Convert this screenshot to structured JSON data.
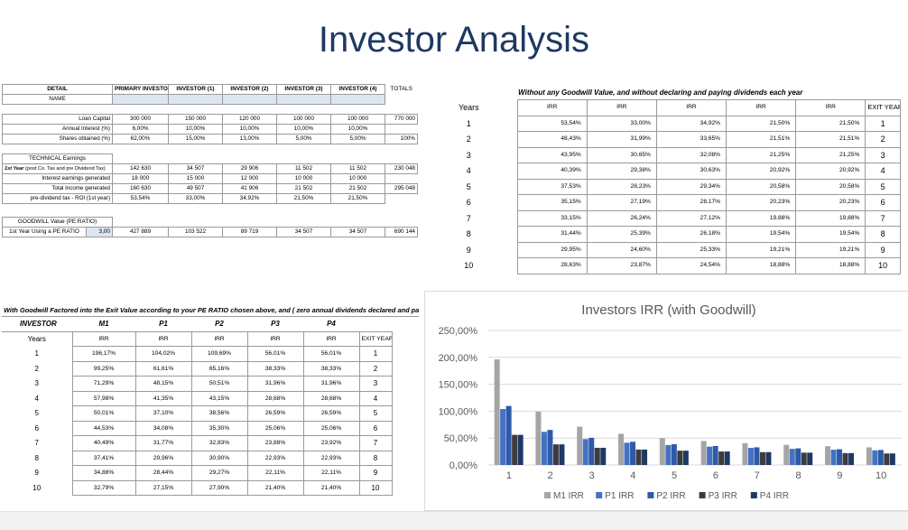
{
  "title": "Investor Analysis",
  "detail": {
    "headers": [
      "DETAIL",
      "PRIMARY INVESTOR",
      "INVESTOR (1)",
      "INVESTOR (2)",
      "INVESTOR (3)",
      "INVESTOR (4)",
      "TOTALS"
    ],
    "name_label": "NAME",
    "loan_capital": {
      "label": "Loan Capital",
      "values": [
        "300 000",
        "150 000",
        "120 000",
        "100 000",
        "100 000"
      ],
      "total": "770 000"
    },
    "annual_interest": {
      "label": "Annual Interest (%)",
      "values": [
        "6,00%",
        "10,00%",
        "10,00%",
        "10,00%",
        "10,00%"
      ]
    },
    "shares": {
      "label": "Shares obtained (%)",
      "values": [
        "62,00%",
        "15,00%",
        "13,00%",
        "5,00%",
        "5,00%"
      ],
      "total": "100%"
    },
    "technical_label": "TECHNICAL Earnings",
    "first_year": {
      "label": "1st Year",
      "label_sub": "(post Co. Tax and pre Dividend Tax)",
      "values": [
        "142 630",
        "34 507",
        "29 906",
        "11 502",
        "11 502"
      ],
      "total": "230 048"
    },
    "interest_earnings": {
      "label": "Interest earnings generated",
      "values": [
        "18 000",
        "15 000",
        "12 000",
        "10 000",
        "10 000"
      ]
    },
    "total_income": {
      "label": "Total Income generated",
      "values": [
        "160 630",
        "49 507",
        "41 906",
        "21 502",
        "21 502"
      ],
      "total": "295 048"
    },
    "roi": {
      "label": "pre-dividend tax - ROI (1st year)",
      "values": [
        "53,54%",
        "33,00%",
        "34,92%",
        "21,50%",
        "21,50%"
      ]
    },
    "goodwill_label": "GOODWILL Value (PE:RATIO)",
    "pe_row": {
      "label": "1st Year Using a PE RATIO",
      "pe": "3,00",
      "values": [
        "427 889",
        "103 522",
        "89 719",
        "34 507",
        "34 507"
      ],
      "total": "690 144"
    }
  },
  "no_goodwill": {
    "title": "Without any Goodwill Value, and without declaring and paying dividends each year",
    "years_label": "Years",
    "irr_label": "IRR",
    "exit_label": "EXIT YEAR",
    "rows": [
      {
        "year": "1",
        "irr": [
          "53,54%",
          "33,00%",
          "34,92%",
          "21,50%",
          "21,50%"
        ],
        "exit": "1"
      },
      {
        "year": "2",
        "irr": [
          "48,43%",
          "31,99%",
          "33,65%",
          "21,51%",
          "21,51%"
        ],
        "exit": "2"
      },
      {
        "year": "3",
        "irr": [
          "43,95%",
          "30,65%",
          "32,08%",
          "21,25%",
          "21,25%"
        ],
        "exit": "3"
      },
      {
        "year": "4",
        "irr": [
          "40,39%",
          "29,38%",
          "30,63%",
          "20,92%",
          "20,92%"
        ],
        "exit": "4"
      },
      {
        "year": "5",
        "irr": [
          "37,53%",
          "28,23%",
          "29,34%",
          "20,58%",
          "20,58%"
        ],
        "exit": "5"
      },
      {
        "year": "6",
        "irr": [
          "35,15%",
          "27,19%",
          "28,17%",
          "20,23%",
          "20,23%"
        ],
        "exit": "6"
      },
      {
        "year": "7",
        "irr": [
          "33,15%",
          "26,24%",
          "27,12%",
          "19,88%",
          "19,88%"
        ],
        "exit": "7"
      },
      {
        "year": "8",
        "irr": [
          "31,44%",
          "25,39%",
          "26,18%",
          "19,54%",
          "19,54%"
        ],
        "exit": "8"
      },
      {
        "year": "9",
        "irr": [
          "29,95%",
          "24,60%",
          "25,33%",
          "19,21%",
          "19,21%"
        ],
        "exit": "9"
      },
      {
        "year": "10",
        "irr": [
          "28,63%",
          "23,87%",
          "24,54%",
          "18,88%",
          "18,88%"
        ],
        "exit": "10"
      }
    ]
  },
  "with_goodwill": {
    "title": "With Goodwill Factored into the Exit Value according to your PE RATIO chosen above, and ( zero annual dividends declared and paid)",
    "investor_label": "INVESTOR",
    "investors": [
      "M1",
      "P1",
      "P2",
      "P3",
      "P4"
    ],
    "years_label": "Years",
    "irr_label": "IRR",
    "exit_label": "EXIT YEAR",
    "rows": [
      {
        "year": "1",
        "irr": [
          "196,17%",
          "104,02%",
          "109,69%",
          "56,01%",
          "56,01%"
        ],
        "exit": "1"
      },
      {
        "year": "2",
        "irr": [
          "99,25%",
          "61,61%",
          "65,16%",
          "38,33%",
          "38,33%"
        ],
        "exit": "2"
      },
      {
        "year": "3",
        "irr": [
          "71,29%",
          "48,15%",
          "50,51%",
          "31,96%",
          "31,96%"
        ],
        "exit": "3"
      },
      {
        "year": "4",
        "irr": [
          "57,98%",
          "41,35%",
          "43,15%",
          "28,68%",
          "28,68%"
        ],
        "exit": "4"
      },
      {
        "year": "5",
        "irr": [
          "50,01%",
          "37,10%",
          "38,56%",
          "26,59%",
          "26,59%"
        ],
        "exit": "5"
      },
      {
        "year": "6",
        "irr": [
          "44,53%",
          "34,08%",
          "35,30%",
          "25,06%",
          "25,06%"
        ],
        "exit": "6"
      },
      {
        "year": "7",
        "irr": [
          "40,49%",
          "31,77%",
          "32,83%",
          "23,88%",
          "23,92%"
        ],
        "exit": "7"
      },
      {
        "year": "8",
        "irr": [
          "37,41%",
          "29,96%",
          "30,90%",
          "22,93%",
          "22,93%"
        ],
        "exit": "8"
      },
      {
        "year": "9",
        "irr": [
          "34,88%",
          "28,44%",
          "29,27%",
          "22,11%",
          "22,11%"
        ],
        "exit": "9"
      },
      {
        "year": "10",
        "irr": [
          "32,79%",
          "27,15%",
          "27,90%",
          "21,40%",
          "21,40%"
        ],
        "exit": "10"
      }
    ]
  },
  "chart_data": {
    "type": "bar",
    "title": "Investors IRR (with Goodwill)",
    "categories": [
      "1",
      "2",
      "3",
      "4",
      "5",
      "6",
      "7",
      "8",
      "9",
      "10"
    ],
    "ylim": [
      0,
      250
    ],
    "yticks": [
      "0,00%",
      "50,00%",
      "100,00%",
      "150,00%",
      "200,00%",
      "250,00%"
    ],
    "grid": true,
    "legend": "bottom",
    "series": [
      {
        "name": "M1 IRR",
        "color": "#a5a5a5",
        "values": [
          196.17,
          99.25,
          71.29,
          57.98,
          50.01,
          44.53,
          40.49,
          37.41,
          34.88,
          32.79
        ]
      },
      {
        "name": "P1 IRR",
        "color": "#4472c4",
        "values": [
          104.02,
          61.61,
          48.15,
          41.35,
          37.1,
          34.08,
          31.77,
          29.96,
          28.44,
          27.15
        ]
      },
      {
        "name": "P2 IRR",
        "color": "#2e5aa8",
        "values": [
          109.69,
          65.16,
          50.51,
          43.15,
          38.56,
          35.3,
          32.83,
          30.9,
          29.27,
          27.9
        ]
      },
      {
        "name": "P3 IRR",
        "color": "#3c3c3c",
        "values": [
          56.01,
          38.33,
          31.96,
          28.68,
          26.59,
          25.06,
          23.88,
          22.93,
          22.11,
          21.4
        ]
      },
      {
        "name": "P4 IRR",
        "color": "#1f3864",
        "values": [
          56.01,
          38.33,
          31.96,
          28.68,
          26.59,
          25.06,
          23.92,
          22.93,
          22.11,
          21.4
        ]
      }
    ]
  }
}
